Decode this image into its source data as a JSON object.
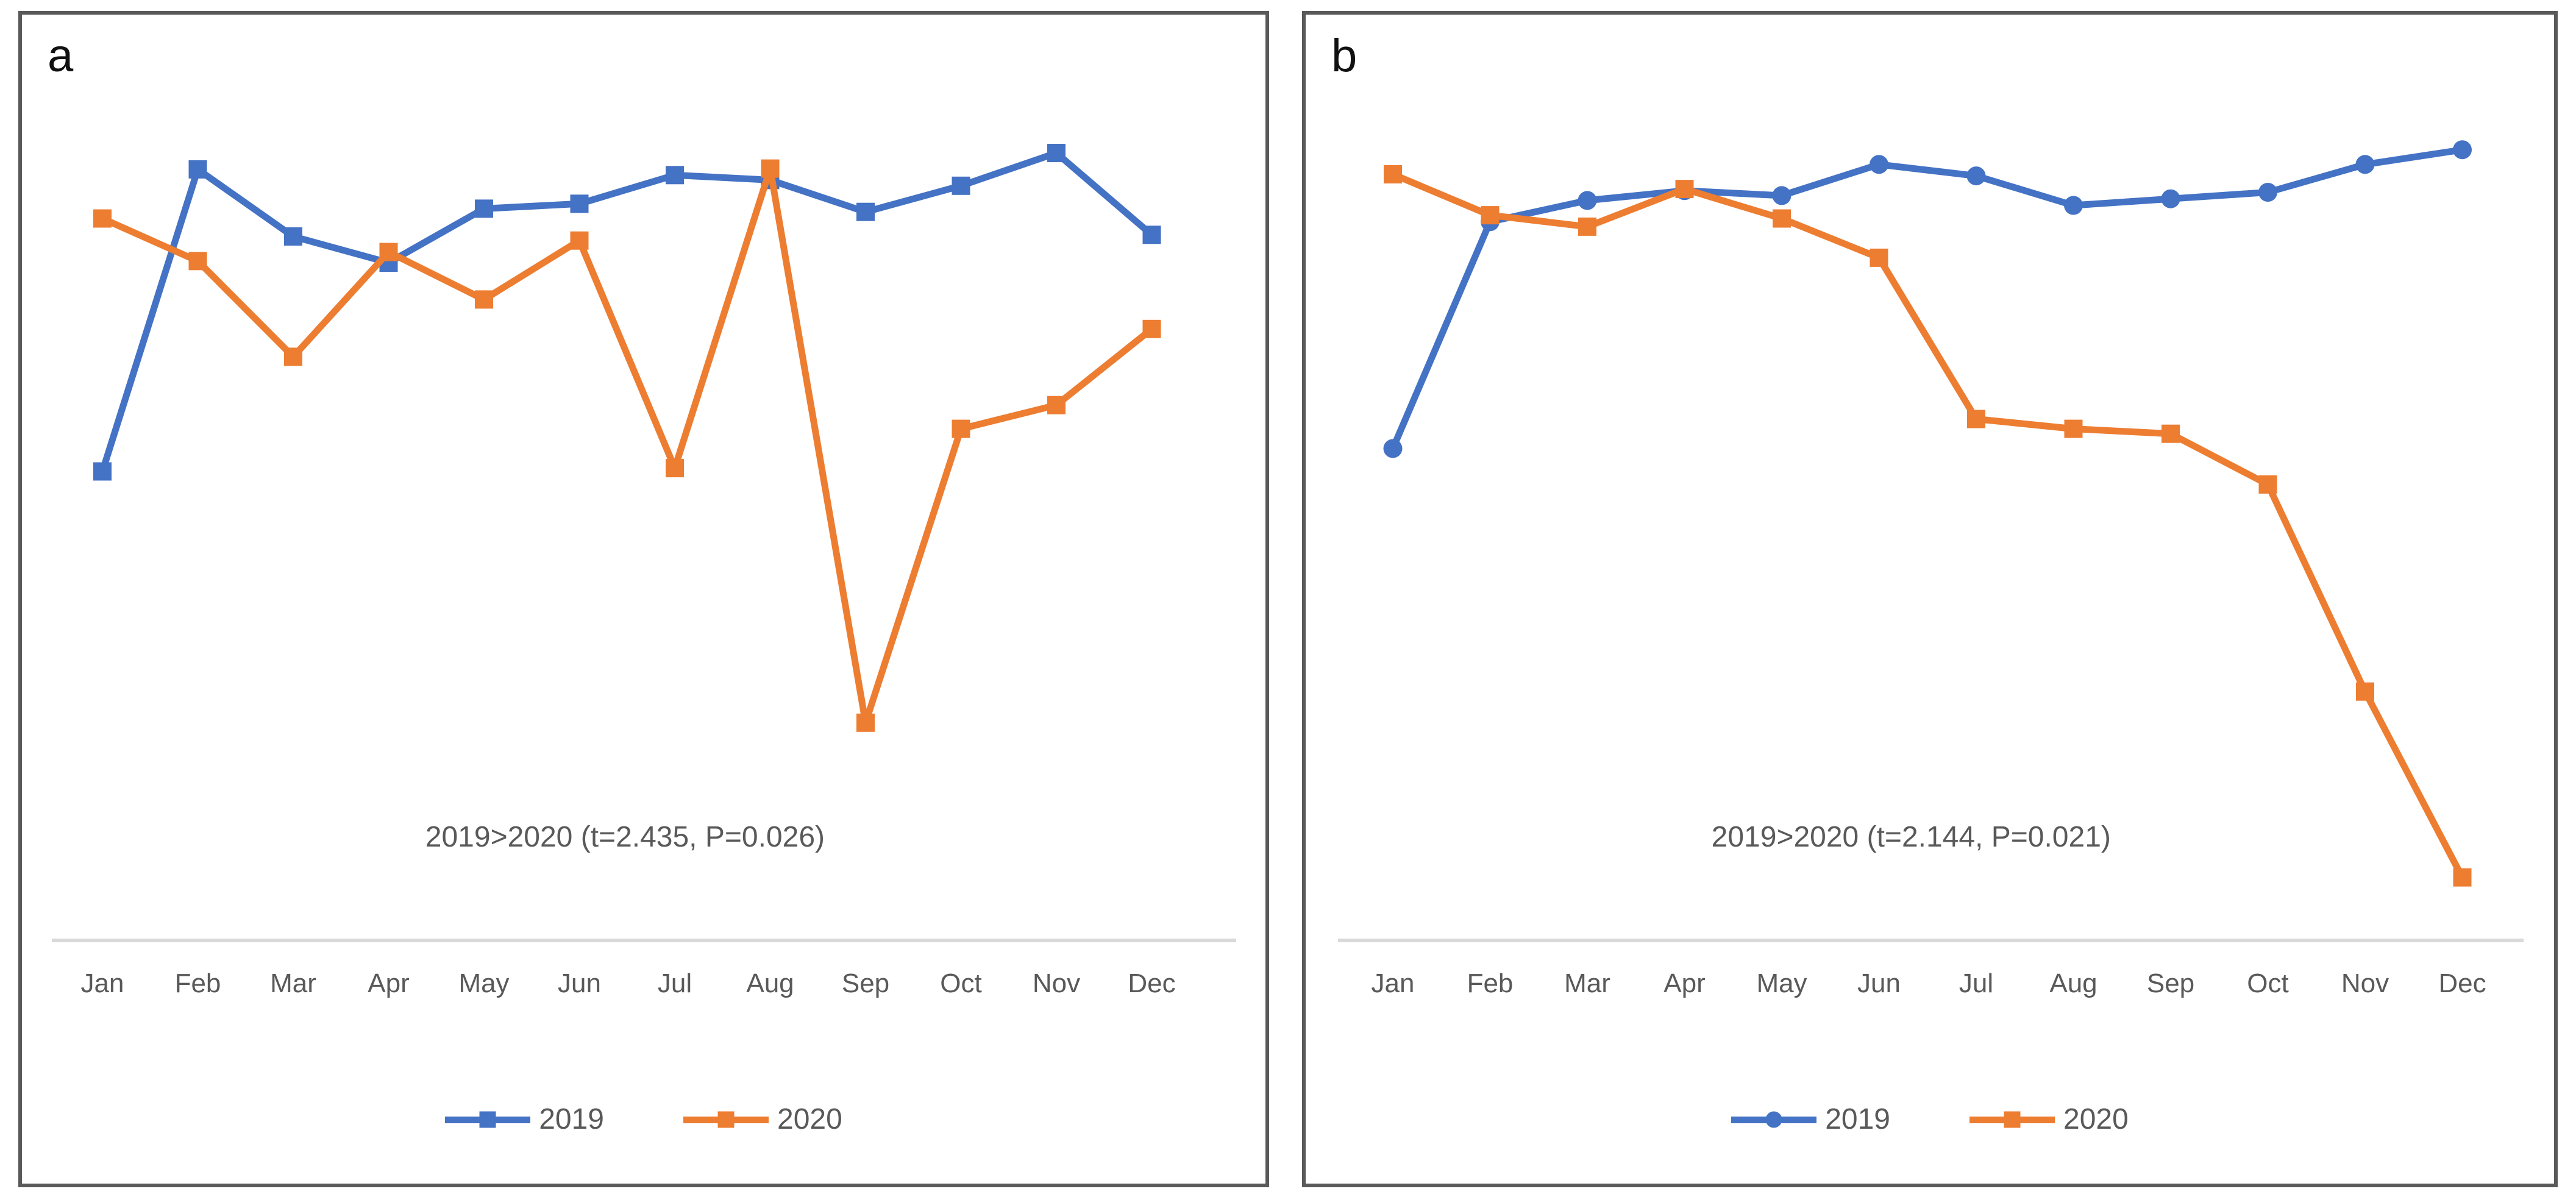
{
  "figure": {
    "background": "#ffffff"
  },
  "colors": {
    "series_2019": "#4472C4",
    "series_2020": "#ED7D31",
    "axis_line": "#D9D9D9",
    "tick_text": "#595959",
    "annotation_text": "#595959",
    "panel_border": "#595959",
    "panel_letter": "#111111"
  },
  "panels": [
    {
      "letter": "a",
      "annotation": "2019>2020 (t=2.435, P=0.026)",
      "legend": {
        "item1": "2019",
        "item2": "2020"
      }
    },
    {
      "letter": "b",
      "annotation": "2019>2020 (t=2.144, P=0.021)",
      "legend": {
        "item1": "2019",
        "item2": "2020"
      }
    }
  ],
  "chart_data": [
    {
      "type": "line",
      "panel": "a",
      "categories": [
        "Jan",
        "Feb",
        "Mar",
        "Apr",
        "May",
        "Jun",
        "Jul",
        "Aug",
        "Sep",
        "Oct",
        "Nov",
        "Dec"
      ],
      "series": [
        {
          "name": "2019",
          "color": "#4472C4",
          "marker": "square",
          "values": [
            57.3,
            94.2,
            86.0,
            82.8,
            89.4,
            90.0,
            93.5,
            92.9,
            89.0,
            92.2,
            96.2,
            86.2
          ]
        },
        {
          "name": "2020",
          "color": "#ED7D31",
          "marker": "square",
          "values": [
            88.2,
            83.0,
            71.3,
            84.1,
            78.3,
            85.5,
            57.7,
            94.3,
            26.6,
            62.5,
            65.4,
            74.7
          ]
        }
      ],
      "annotation": "2019>2020 (t=2.435, P=0.026)",
      "ylim": [
        0,
        100
      ],
      "y_axis_visible": false,
      "grid": false,
      "legend_position": "bottom",
      "layout": {
        "view_w": 2040,
        "view_h": 1918,
        "x_start": 132,
        "x_step": 156.5,
        "baseline_y": 1519,
        "top_y": 176,
        "axis_x1": 49,
        "axis_x2": 1992,
        "label_y": 1604
      }
    },
    {
      "type": "line",
      "panel": "b",
      "categories": [
        "Jan",
        "Feb",
        "Mar",
        "Apr",
        "May",
        "Jun",
        "Jul",
        "Aug",
        "Sep",
        "Oct",
        "Nov",
        "Dec"
      ],
      "series": [
        {
          "name": "2019",
          "color": "#4472C4",
          "marker": "circle",
          "values": [
            60.1,
            87.8,
            90.4,
            91.6,
            91.0,
            94.8,
            93.4,
            89.8,
            90.6,
            91.4,
            94.8,
            96.6
          ]
        },
        {
          "name": "2020",
          "color": "#ED7D31",
          "marker": "square",
          "values": [
            93.6,
            88.6,
            87.2,
            91.8,
            88.2,
            83.4,
            63.7,
            62.5,
            61.9,
            55.7,
            30.4,
            7.7
          ]
        }
      ],
      "annotation": "2019>2020 (t=2.144, P=0.021)",
      "ylim": [
        0,
        100
      ],
      "y_axis_visible": false,
      "grid": false,
      "legend_position": "bottom",
      "layout": {
        "view_w": 2048,
        "view_h": 1918,
        "x_start": 143,
        "x_step": 159.5,
        "baseline_y": 1519,
        "top_y": 176,
        "axis_x1": 53,
        "axis_x2": 1998,
        "label_y": 1604
      }
    }
  ]
}
